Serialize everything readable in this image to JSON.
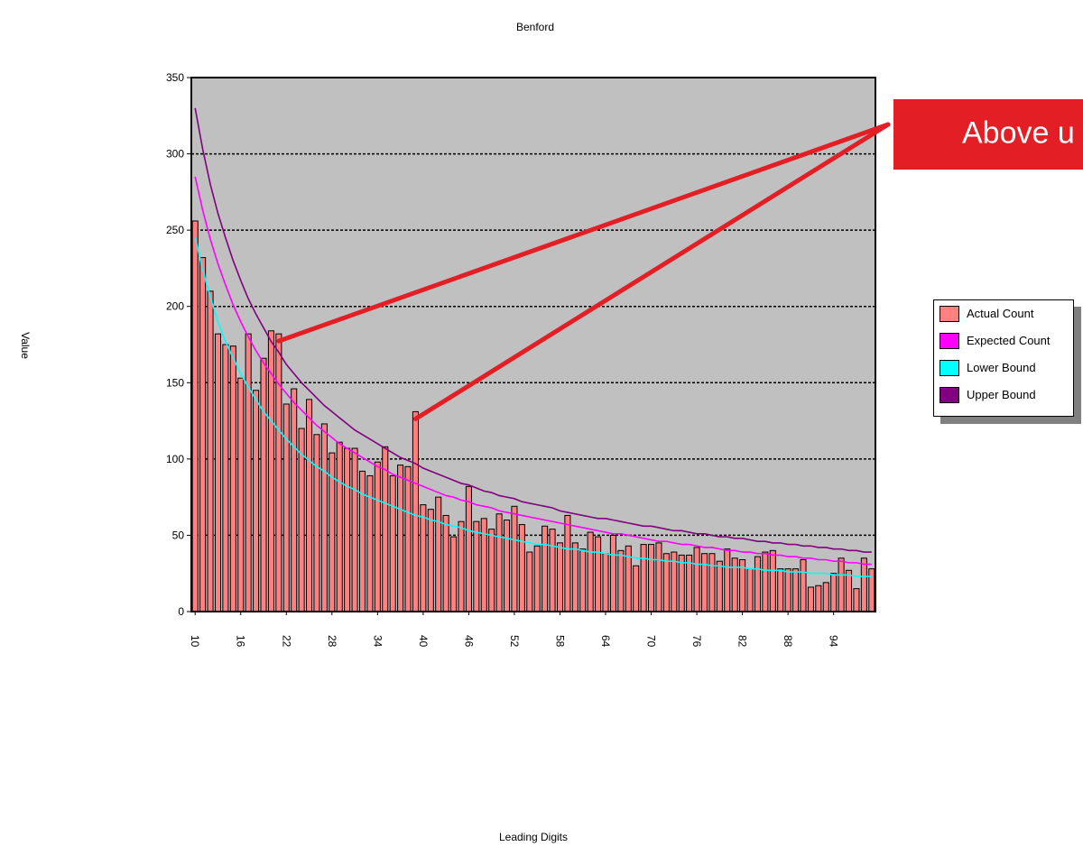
{
  "chart_data": {
    "type": "bar",
    "title": "Benford",
    "xlabel": "Leading Digits",
    "ylabel": "Value",
    "ylim": [
      0,
      350
    ],
    "yticks": [
      0,
      50,
      100,
      150,
      200,
      250,
      300,
      350
    ],
    "xtick_labels": [
      "10",
      "16",
      "22",
      "28",
      "34",
      "40",
      "46",
      "52",
      "58",
      "64",
      "70",
      "76",
      "82",
      "88",
      "94"
    ],
    "categories": [
      10,
      11,
      12,
      13,
      14,
      15,
      16,
      17,
      18,
      19,
      20,
      21,
      22,
      23,
      24,
      25,
      26,
      27,
      28,
      29,
      30,
      31,
      32,
      33,
      34,
      35,
      36,
      37,
      38,
      39,
      40,
      41,
      42,
      43,
      44,
      45,
      46,
      47,
      48,
      49,
      50,
      51,
      52,
      53,
      54,
      55,
      56,
      57,
      58,
      59,
      60,
      61,
      62,
      63,
      64,
      65,
      66,
      67,
      68,
      69,
      70,
      71,
      72,
      73,
      74,
      75,
      76,
      77,
      78,
      79,
      80,
      81,
      82,
      83,
      84,
      85,
      86,
      87,
      88,
      89,
      90,
      91,
      92,
      93,
      94,
      95,
      96,
      97,
      98,
      99
    ],
    "grid": "horizontal dashed",
    "legend_position": "right",
    "plot_background": "#c0c0c0",
    "series": [
      {
        "name": "Actual Count",
        "kind": "bar",
        "color": "#ff8080",
        "values": [
          256,
          232,
          210,
          182,
          175,
          174,
          153,
          182,
          145,
          166,
          184,
          182,
          136,
          146,
          120,
          139,
          116,
          123,
          104,
          111,
          107,
          107,
          92,
          89,
          98,
          108,
          89,
          96,
          95,
          131,
          70,
          67,
          75,
          63,
          49,
          59,
          82,
          59,
          61,
          54,
          64,
          60,
          69,
          57,
          39,
          43,
          56,
          54,
          45,
          63,
          45,
          41,
          52,
          49,
          38,
          50,
          40,
          43,
          30,
          44,
          44,
          45,
          38,
          39,
          37,
          37,
          42,
          38,
          38,
          33,
          41,
          35,
          34,
          28,
          36,
          39,
          40,
          28,
          28,
          28,
          34,
          16,
          17,
          19,
          25,
          35,
          27,
          15,
          35,
          28
        ]
      },
      {
        "name": "Expected Count",
        "kind": "line",
        "color": "#ff00ff",
        "values": [
          285,
          263,
          244,
          228,
          214,
          201,
          190,
          180,
          171,
          163,
          156,
          149,
          143,
          137,
          132,
          127,
          122,
          118,
          114,
          110,
          107,
          104,
          101,
          98,
          95,
          93,
          90,
          88,
          86,
          84,
          82,
          80,
          78,
          76,
          75,
          73,
          72,
          70,
          69,
          68,
          66,
          65,
          64,
          63,
          62,
          61,
          60,
          59,
          58,
          57,
          56,
          55,
          54,
          53,
          52,
          51,
          51,
          50,
          49,
          48,
          47,
          46,
          46,
          45,
          44,
          44,
          43,
          42,
          42,
          41,
          40,
          40,
          39,
          39,
          38,
          38,
          37,
          37,
          36,
          36,
          35,
          35,
          34,
          34,
          33,
          33,
          32,
          32,
          31,
          31
        ]
      },
      {
        "name": "Lower Bound",
        "kind": "line",
        "color": "#00ffff",
        "values": [
          245,
          224,
          206,
          190,
          177,
          166,
          156,
          147,
          139,
          131,
          125,
          119,
          113,
          108,
          103,
          99,
          95,
          92,
          88,
          85,
          82,
          80,
          77,
          75,
          73,
          71,
          69,
          67,
          65,
          63,
          62,
          60,
          59,
          57,
          56,
          55,
          53,
          52,
          51,
          50,
          49,
          48,
          47,
          46,
          45,
          44,
          44,
          43,
          42,
          41,
          41,
          40,
          39,
          39,
          38,
          37,
          37,
          36,
          35,
          35,
          34,
          34,
          33,
          33,
          32,
          32,
          31,
          31,
          30,
          30,
          29,
          29,
          29,
          28,
          28,
          27,
          27,
          27,
          26,
          26,
          26,
          25,
          25,
          25,
          24,
          24,
          24,
          23,
          23,
          23
        ]
      },
      {
        "name": "Upper Bound",
        "kind": "line",
        "color": "#800080",
        "values": [
          330,
          303,
          280,
          261,
          245,
          230,
          217,
          205,
          195,
          186,
          177,
          170,
          162,
          156,
          150,
          145,
          140,
          135,
          131,
          127,
          123,
          119,
          116,
          113,
          110,
          107,
          104,
          101,
          99,
          97,
          94,
          92,
          90,
          88,
          86,
          84,
          83,
          81,
          79,
          78,
          76,
          75,
          74,
          72,
          71,
          70,
          69,
          68,
          66,
          65,
          64,
          63,
          62,
          61,
          61,
          60,
          59,
          58,
          57,
          56,
          56,
          55,
          54,
          53,
          53,
          52,
          51,
          51,
          50,
          49,
          49,
          48,
          48,
          47,
          46,
          46,
          45,
          45,
          44,
          44,
          43,
          43,
          42,
          42,
          41,
          41,
          40,
          40,
          39,
          39
        ]
      }
    ],
    "annotations": [
      {
        "text": "Above u",
        "points_to": [
          21,
          39
        ]
      }
    ]
  },
  "legend": {
    "items": [
      {
        "label": "Actual Count",
        "color": "#ff8080"
      },
      {
        "label": "Expected Count",
        "color": "#ff00ff"
      },
      {
        "label": "Lower Bound",
        "color": "#00ffff"
      },
      {
        "label": "Upper Bound",
        "color": "#800080"
      }
    ]
  },
  "callout": {
    "text": "Above u",
    "color": "#e31e24"
  }
}
